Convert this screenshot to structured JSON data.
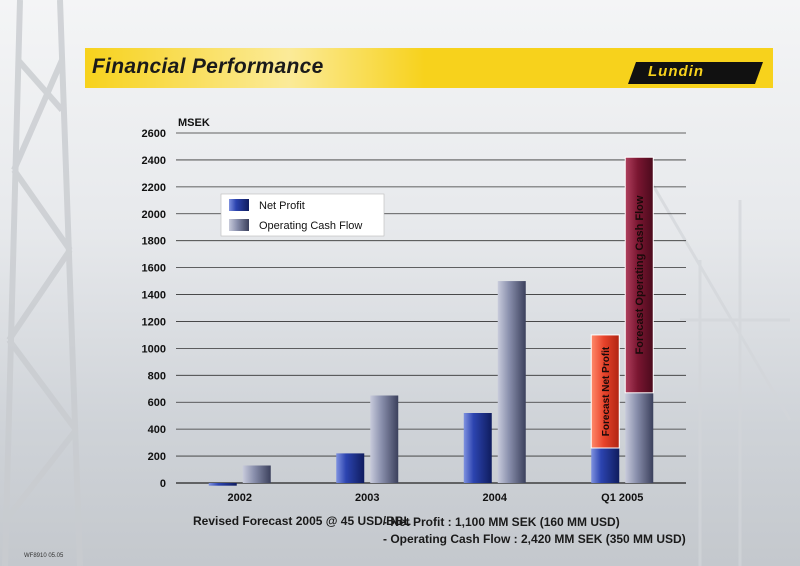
{
  "header": {
    "title": "Financial Performance",
    "logo_text": "Lundin",
    "banner_color": "#f7d21c"
  },
  "chart_data": {
    "type": "bar",
    "ylabel": "MSEK",
    "ylim": [
      0,
      2600
    ],
    "yticks": [
      0,
      200,
      400,
      600,
      800,
      1000,
      1200,
      1400,
      1600,
      1800,
      2000,
      2200,
      2400,
      2600
    ],
    "grid": true,
    "legend_position": "top-left",
    "categories": [
      "2002",
      "2003",
      "2004",
      "Q1 2005"
    ],
    "series": [
      {
        "name": "Net Profit",
        "color": "#2b3f9c",
        "values": [
          -20,
          220,
          520,
          260
        ]
      },
      {
        "name": "Operating Cash Flow",
        "color": "#6e7592",
        "values": [
          130,
          650,
          1500,
          670
        ]
      }
    ],
    "forecast": [
      {
        "label": "Forecast Net Profit",
        "category": "Q1 2005",
        "base": 260,
        "top": 1100,
        "color": "#e8432b"
      },
      {
        "label": "Forecast Operating Cash Flow",
        "category": "Q1 2005",
        "base": 670,
        "top": 2420,
        "color": "#7a1631"
      }
    ]
  },
  "footer": {
    "forecast_label": "Revised Forecast 2005 @ 45 USD/BBL",
    "net_profit_line": "- Net Profit :  1,100 MM SEK (160 MM USD)",
    "cash_flow_line": "- Operating Cash Flow : 2,420 MM SEK  (350 MM USD)",
    "doc_code": "WF8910 05.05"
  }
}
